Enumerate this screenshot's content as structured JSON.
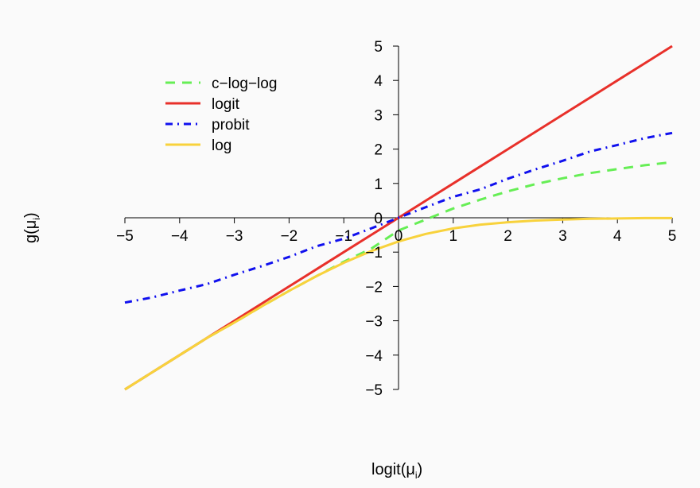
{
  "chart_data": {
    "type": "line",
    "xlabel": {
      "base": "logit(μ",
      "sub": "i",
      "close": ")"
    },
    "ylabel": {
      "base": "g(μ",
      "sub": "i",
      "close": ")"
    },
    "xlim": [
      -5,
      5
    ],
    "ylim": [
      -5,
      5
    ],
    "x_ticks": [
      -5,
      -4,
      -3,
      -2,
      -1,
      0,
      1,
      2,
      3,
      4,
      5
    ],
    "y_ticks": [
      -5,
      -4,
      -3,
      -2,
      -1,
      0,
      1,
      2,
      3,
      4,
      5
    ],
    "x_tick_labels": [
      "−5",
      "−4",
      "−3",
      "−2",
      "−1",
      "0",
      "1",
      "2",
      "3",
      "4",
      "5"
    ],
    "y_tick_labels": [
      "−5",
      "−4",
      "−3",
      "−2",
      "−1",
      "0",
      "1",
      "2",
      "3",
      "4",
      "5"
    ],
    "grid": false,
    "legend_position": "top-left",
    "x": [
      -5,
      -4.5,
      -4,
      -3.5,
      -3,
      -2.5,
      -2,
      -1.5,
      -1,
      -0.5,
      0,
      0.5,
      1,
      1.5,
      2,
      2.5,
      3,
      3.5,
      4,
      4.5,
      5
    ],
    "series": [
      {
        "name": "c−log−log",
        "color": "#66ee55",
        "dash": "dashed",
        "values": [
          -5.0,
          -4.5,
          -4.0,
          -3.5,
          -3.05,
          -2.58,
          -2.13,
          -1.7,
          -1.28,
          -0.9,
          -0.37,
          -0.05,
          0.27,
          0.53,
          0.77,
          0.98,
          1.15,
          1.3,
          1.42,
          1.53,
          1.62
        ]
      },
      {
        "name": "logit",
        "color": "#e8302a",
        "dash": "solid",
        "values": [
          -5,
          -4.5,
          -4,
          -3.5,
          -3,
          -2.5,
          -2,
          -1.5,
          -1,
          -0.5,
          0,
          0.5,
          1,
          1.5,
          2,
          2.5,
          3,
          3.5,
          4,
          4.5,
          5
        ]
      },
      {
        "name": "probit",
        "color": "#1010ee",
        "dash": "dashdot",
        "values": [
          -2.47,
          -2.32,
          -2.12,
          -1.93,
          -1.66,
          -1.41,
          -1.14,
          -0.83,
          -0.61,
          -0.31,
          0.0,
          0.31,
          0.61,
          0.83,
          1.14,
          1.41,
          1.66,
          1.93,
          2.12,
          2.32,
          2.47
        ]
      },
      {
        "name": "log",
        "color": "#f8d23c",
        "dash": "solid",
        "values": [
          -5.0,
          -4.5,
          -4.0,
          -3.5,
          -3.05,
          -2.58,
          -2.13,
          -1.7,
          -1.31,
          -0.97,
          -0.69,
          -0.47,
          -0.31,
          -0.2,
          -0.13,
          -0.08,
          -0.05,
          -0.03,
          -0.02,
          -0.01,
          -0.01
        ]
      }
    ]
  }
}
